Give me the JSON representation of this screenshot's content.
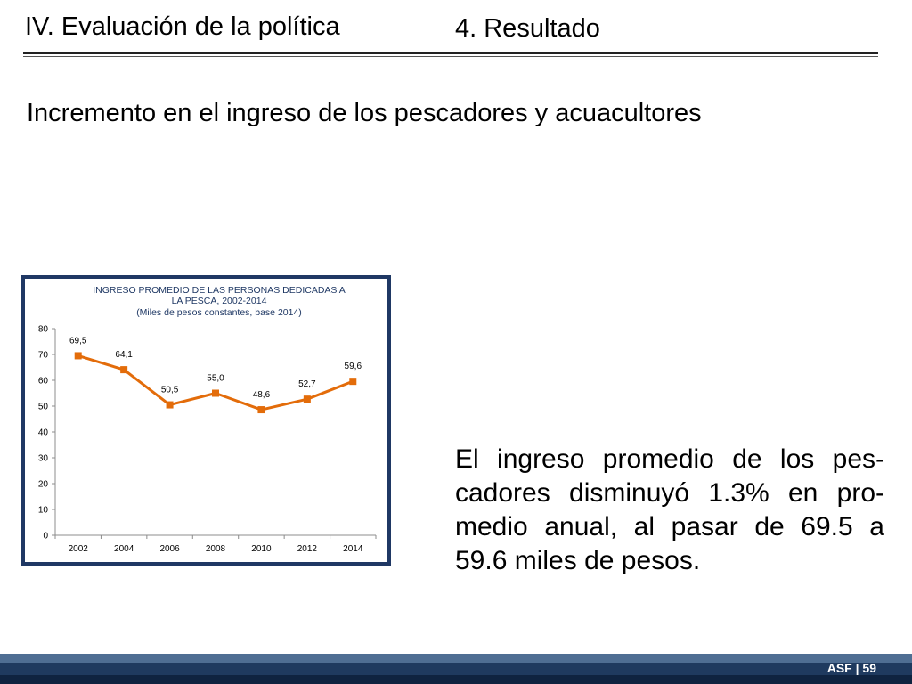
{
  "header": {
    "section": "IV. Evaluación de la política",
    "topic": "4. Resultado"
  },
  "subtitle": "Incremento en el ingreso de los pescadores y acuacultores",
  "chart_data": {
    "type": "line",
    "title": "INGRESO PROMEDIO DE LAS PERSONAS DEDICADAS A LA PESCA, 2002-2014",
    "subtitle": "(Miles  de pesos constantes, base 2014)",
    "title_lines": [
      "INGRESO PROMEDIO DE LAS PERSONAS DEDICADAS A",
      "LA PESCA, 2002-2014",
      "(Miles  de pesos constantes, base 2014)"
    ],
    "categories": [
      "2002",
      "2004",
      "2006",
      "2008",
      "2010",
      "2012",
      "2014"
    ],
    "values": [
      69.5,
      64.1,
      50.5,
      55.0,
      48.6,
      52.7,
      59.6
    ],
    "data_labels": [
      "69,5",
      "64,1",
      "50,5",
      "55,0",
      "48,6",
      "52,7",
      "59,6"
    ],
    "yticks": [
      "0",
      "10",
      "20",
      "30",
      "40",
      "50",
      "60",
      "70",
      "80"
    ],
    "ylim": [
      0,
      80
    ],
    "xlabel": "",
    "ylabel": "",
    "grid": false,
    "line_color": "#e36c0a",
    "frame_color": "#1f3864"
  },
  "body_text": "El ingreso promedio de los pes-cadores disminuyó 1.3% en pro-medio anual, al pasar de 69.5 a 59.6 miles de pesos.",
  "footer": {
    "label": "ASF | 59"
  }
}
